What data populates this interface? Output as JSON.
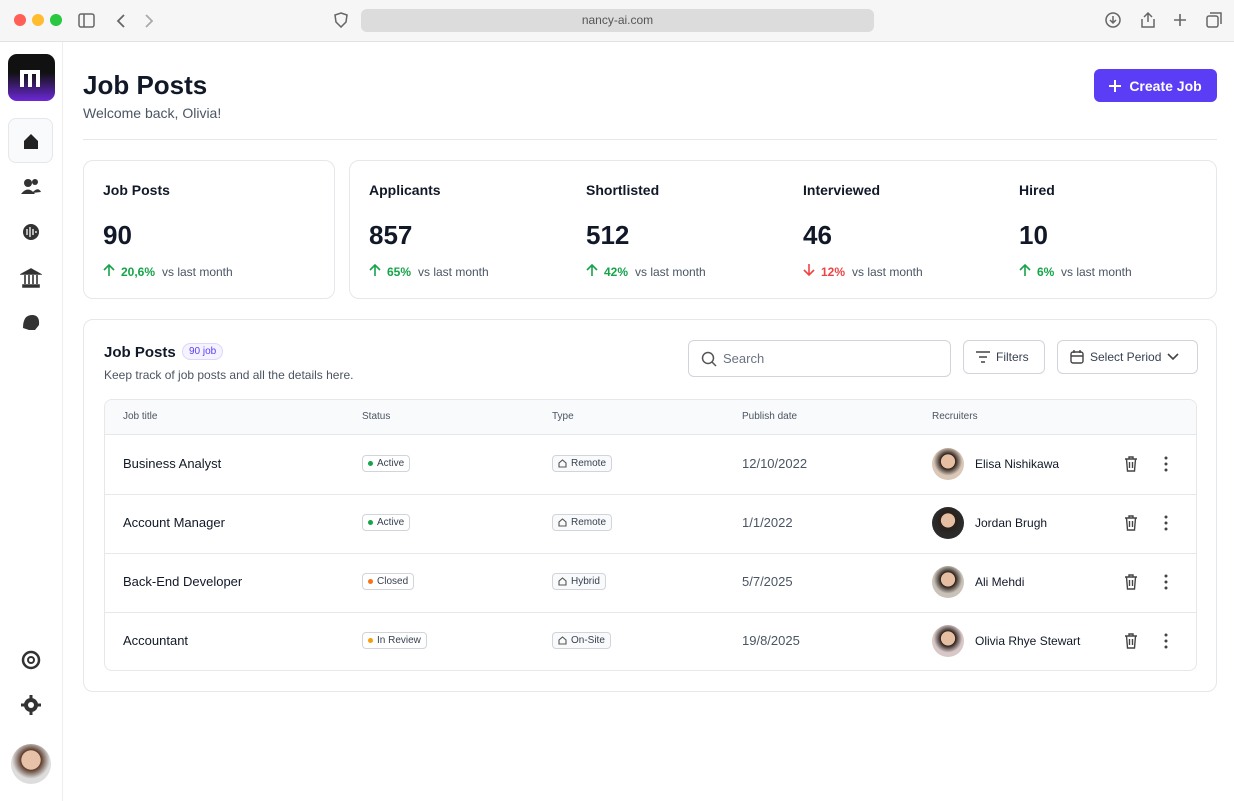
{
  "browser": {
    "url": "nancy-ai.com"
  },
  "header": {
    "title": "Job Posts",
    "subtitle": "Welcome back, Olivia!",
    "create_button": "Create Job"
  },
  "stats": [
    {
      "label": "Job Posts",
      "value": 90,
      "change": "20,6%",
      "direction": "up",
      "note": "vs last month"
    },
    {
      "label": "Applicants",
      "value": 857,
      "change": "65%",
      "direction": "up",
      "note": "vs last month"
    },
    {
      "label": "Shortlisted",
      "value": 512,
      "change": "42%",
      "direction": "up",
      "note": "vs last month"
    },
    {
      "label": "Interviewed",
      "value": 46,
      "change": "12%",
      "direction": "down",
      "note": "vs last month"
    },
    {
      "label": "Hired",
      "value": 10,
      "change": "6%",
      "direction": "up",
      "note": "vs last month"
    }
  ],
  "table": {
    "title": "Job Posts",
    "badge": "90 job",
    "description": "Keep track of job posts and all the details here.",
    "search_placeholder": "Search",
    "filters": "Filters",
    "period": "Select Period",
    "columns": [
      "Job title",
      "Status",
      "Type",
      "Publish date",
      "Recruiters"
    ],
    "rows": [
      {
        "title": "Business Analyst",
        "status": "Active",
        "type": "Remote",
        "date": "12/10/2022",
        "recruiter": "Elisa Nishikawa"
      },
      {
        "title": "Account Manager",
        "status": "Active",
        "type": "Remote",
        "date": "1/1/2022",
        "recruiter": "Jordan Brugh"
      },
      {
        "title": "Back-End Developer",
        "status": "Closed",
        "type": "Hybrid",
        "date": "5/7/2025",
        "recruiter": "Ali Mehdi"
      },
      {
        "title": "Accountant",
        "status": "In Review",
        "type": "On-Site",
        "date": "19/8/2025",
        "recruiter": "Olivia Rhye Stewart"
      }
    ]
  }
}
